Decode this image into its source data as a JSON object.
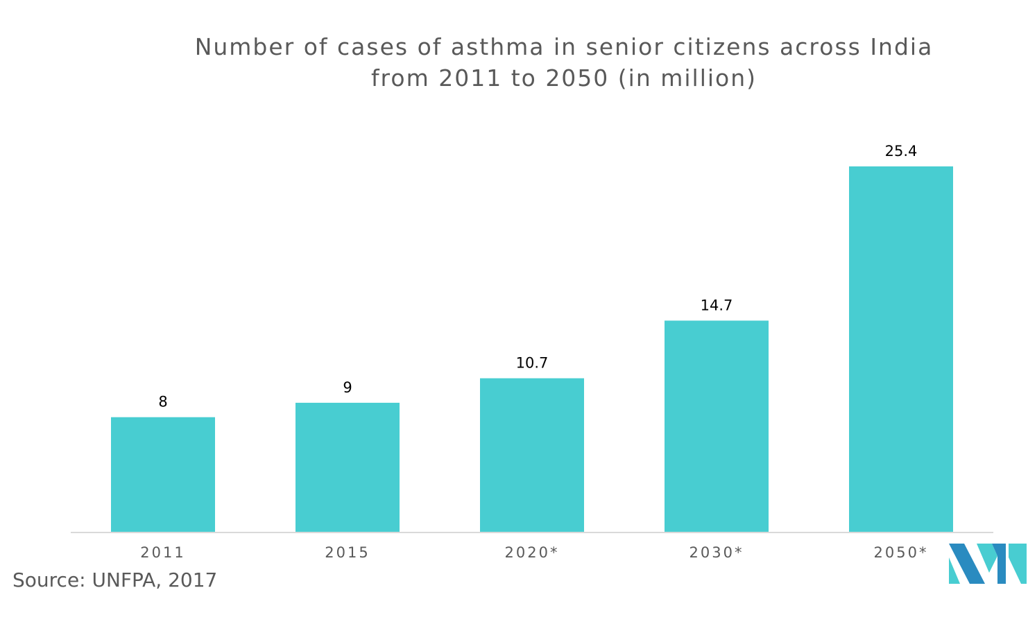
{
  "chart_data": {
    "type": "bar",
    "title_lines": [
      "Number of cases of asthma in senior citizens across India",
      "from 2011 to 2050 (in million)"
    ],
    "categories": [
      "2011",
      "2015",
      "2020*",
      "2030*",
      "2050*"
    ],
    "values": [
      8,
      9,
      10.7,
      14.7,
      25.4
    ],
    "value_labels": [
      "8",
      "9",
      "10.7",
      "14.7",
      "25.4"
    ],
    "xlabel": "",
    "ylabel": "",
    "ylim": [
      0,
      25.4
    ],
    "grid": false,
    "legend": "none",
    "bar_color": "#48CDD1"
  },
  "source": "Source: UNFPA, 2017",
  "logo": {
    "icon": "mordor-intelligence-logo",
    "colors": [
      "#2A8BC0",
      "#48CDD1"
    ]
  }
}
